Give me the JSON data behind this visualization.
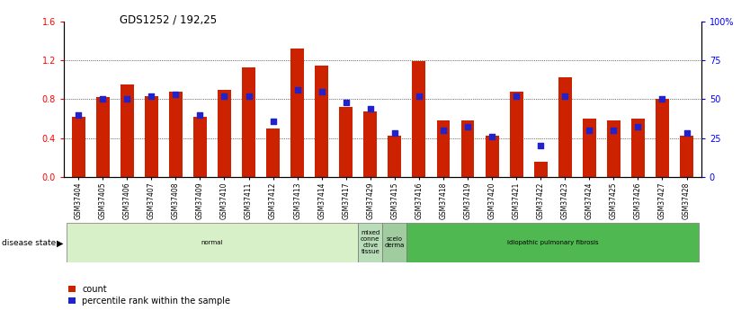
{
  "title": "GDS1252 / 192,25",
  "samples": [
    "GSM37404",
    "GSM37405",
    "GSM37406",
    "GSM37407",
    "GSM37408",
    "GSM37409",
    "GSM37410",
    "GSM37411",
    "GSM37412",
    "GSM37413",
    "GSM37414",
    "GSM37417",
    "GSM37429",
    "GSM37415",
    "GSM37416",
    "GSM37418",
    "GSM37419",
    "GSM37420",
    "GSM37421",
    "GSM37422",
    "GSM37423",
    "GSM37424",
    "GSM37425",
    "GSM37426",
    "GSM37427",
    "GSM37428"
  ],
  "red_values": [
    0.62,
    0.82,
    0.95,
    0.83,
    0.88,
    0.62,
    0.9,
    1.13,
    0.5,
    1.32,
    1.15,
    0.72,
    0.67,
    0.42,
    1.19,
    0.58,
    0.58,
    0.42,
    0.88,
    0.15,
    1.03,
    0.6,
    0.58,
    0.6,
    0.8,
    0.42
  ],
  "blue_values": [
    40,
    50,
    50,
    52,
    53,
    40,
    52,
    52,
    36,
    56,
    55,
    48,
    44,
    28,
    52,
    30,
    32,
    26,
    52,
    20,
    52,
    30,
    30,
    32,
    50,
    28
  ],
  "groups": [
    {
      "label": "normal",
      "start": 0,
      "end": 12,
      "color": "#d8f0c8"
    },
    {
      "label": "mixed\nconne\nctive\ntissue",
      "start": 12,
      "end": 13,
      "color": "#b8ddb8"
    },
    {
      "label": "scelo\nderma",
      "start": 13,
      "end": 14,
      "color": "#a0cca0"
    },
    {
      "label": "idiopathic pulmonary fibrosis",
      "start": 14,
      "end": 26,
      "color": "#50b850"
    }
  ],
  "ylim_left": [
    0,
    1.6
  ],
  "ylim_right": [
    0,
    100
  ],
  "left_ticks": [
    0,
    0.4,
    0.8,
    1.2,
    1.6
  ],
  "right_ticks": [
    0,
    25,
    50,
    75,
    100
  ],
  "bar_color": "#cc2200",
  "blue_color": "#2222cc",
  "disease_state_label": "disease state",
  "legend_count": "count",
  "legend_percentile": "percentile rank within the sample",
  "xtick_bg": "#cccccc"
}
